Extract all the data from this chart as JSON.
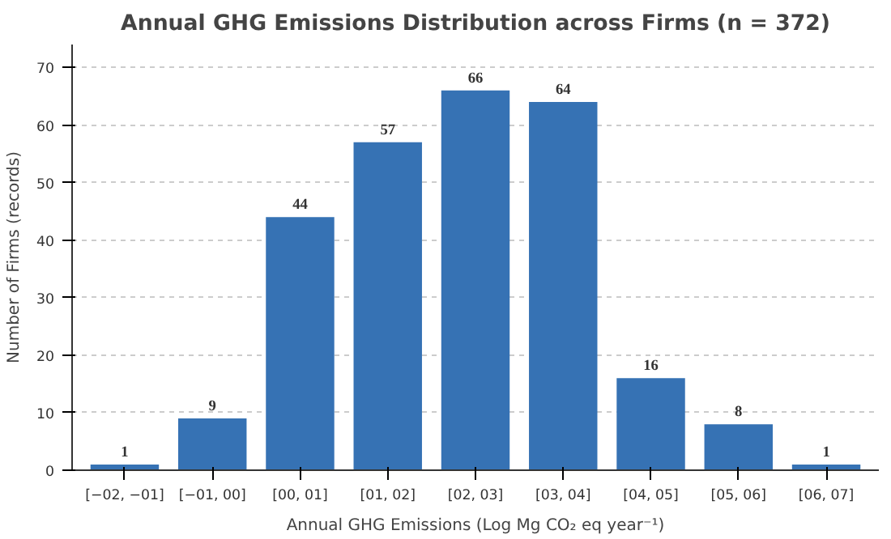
{
  "chart_data": {
    "type": "bar",
    "title": "Annual GHG Emissions Distribution across Firms (n = 372)",
    "xlabel": "Annual GHG Emissions (Log Mg CO₂ eq year⁻¹)",
    "ylabel": "Number of Firms (records)",
    "categories": [
      "[−02, −01]",
      "[−01, 00]",
      "[00, 01]",
      "[01, 02]",
      "[02, 03]",
      "[03, 04]",
      "[04, 05]",
      "[05, 06]",
      "[06, 07]"
    ],
    "values": [
      1,
      9,
      44,
      57,
      66,
      64,
      16,
      8,
      1
    ],
    "color": "#3672b4",
    "ylim": [
      0,
      74
    ],
    "yticks": [
      0,
      10,
      20,
      30,
      40,
      50,
      60,
      70
    ],
    "grid": "y",
    "data_labels": true
  }
}
